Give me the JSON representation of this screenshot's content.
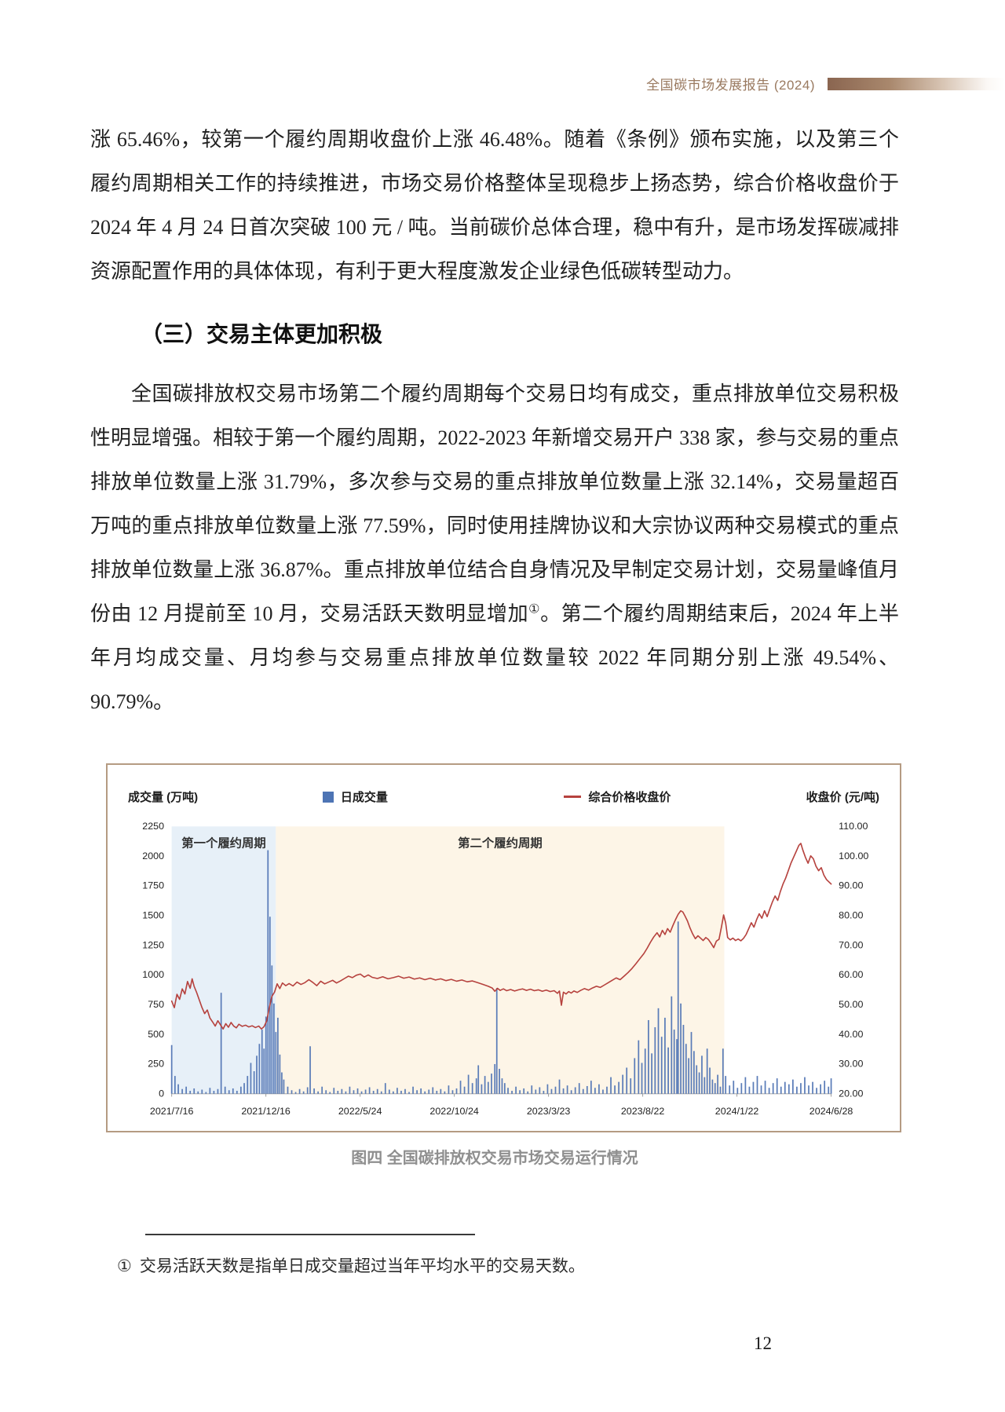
{
  "header": {
    "title": "全国碳市场发展报告 (2024)",
    "accent_color": "#8a6550"
  },
  "paragraphs": {
    "p1": "涨 65.46%，较第一个履约周期收盘价上涨 46.48%。随着《条例》颁布实施，以及第三个履约周期相关工作的持续推进，市场交易价格整体呈现稳步上扬态势，综合价格收盘价于 2024 年 4 月 24 日首次突破 100 元 / 吨。当前碳价总体合理，稳中有升，是市场发挥碳减排资源配置作用的具体体现，有利于更大程度激发企业绿色低碳转型动力。",
    "heading": "（三）交易主体更加积极",
    "p2_part1": "全国碳排放权交易市场第二个履约周期每个交易日均有成交，重点排放单位交易积极性明显增强。相较于第一个履约周期，2022-2023 年新增交易开户 338 家，参与交易的重点排放单位数量上涨 31.79%，多次参与交易的重点排放单位数量上涨 32.14%，交易量超百万吨的重点排放单位数量上涨 77.59%，同时使用挂牌协议和大宗协议两种交易模式的重点排放单位数量上涨 36.87%。重点排放单位结合自身情况及早制定交易计划，交易量峰值月份由 12 月提前至 10 月，交易活跃天数明显增加",
    "p2_sup": "①",
    "p2_part2": "。第二个履约周期结束后，2024 年上半年月均成交量、月均参与交易重点排放单位数量较 2022 年同期分别上涨 49.54%、90.79%。"
  },
  "figure": {
    "caption": "图四 全国碳排放权交易市场交易运行情况"
  },
  "footnote": {
    "marker": "①",
    "text": "交易活跃天数是指单日成交量超过当年平均水平的交易天数。"
  },
  "page_number": "12",
  "chart_data": {
    "type": "bar+line",
    "left_axis": {
      "label": "成交量 (万吨)",
      "min": 0,
      "max": 2250,
      "ticks": [
        0,
        250,
        500,
        750,
        1000,
        1250,
        1500,
        1750,
        2000,
        2250
      ]
    },
    "right_axis": {
      "label": "收盘价 (元/吨)",
      "min": 20,
      "max": 110,
      "ticks": [
        20,
        30,
        40,
        50,
        60,
        70,
        80,
        90,
        100,
        110
      ]
    },
    "x_ticks": [
      "2021/7/16",
      "2021/12/16",
      "2022/5/24",
      "2022/10/24",
      "2023/3/23",
      "2023/8/22",
      "2024/1/22",
      "2024/6/28"
    ],
    "legend": [
      {
        "label": "日成交量",
        "type": "bar",
        "color": "#4d74b4"
      },
      {
        "label": "综合价格收盘价",
        "type": "line",
        "color": "#b6423e"
      }
    ],
    "regions": [
      {
        "label": "第一个履约周期",
        "start": 0,
        "end": 0.158,
        "color": "#e7f0f8"
      },
      {
        "label": "第二个履约周期",
        "start": 0.158,
        "end": 0.838,
        "color": "#fdf5e7"
      }
    ],
    "bar_color": "#5a7cb8",
    "line_color": "#b6423e",
    "bars": [
      [
        0.0,
        410
      ],
      [
        0.005,
        150
      ],
      [
        0.01,
        80
      ],
      [
        0.016,
        40
      ],
      [
        0.022,
        60
      ],
      [
        0.028,
        25
      ],
      [
        0.034,
        45
      ],
      [
        0.04,
        20
      ],
      [
        0.046,
        35
      ],
      [
        0.052,
        15
      ],
      [
        0.058,
        50
      ],
      [
        0.064,
        25
      ],
      [
        0.07,
        40
      ],
      [
        0.075,
        850
      ],
      [
        0.081,
        60
      ],
      [
        0.087,
        30
      ],
      [
        0.093,
        45
      ],
      [
        0.099,
        25
      ],
      [
        0.105,
        60
      ],
      [
        0.11,
        90
      ],
      [
        0.115,
        150
      ],
      [
        0.12,
        260
      ],
      [
        0.125,
        190
      ],
      [
        0.129,
        320
      ],
      [
        0.133,
        420
      ],
      [
        0.137,
        540
      ],
      [
        0.14,
        380
      ],
      [
        0.143,
        650
      ],
      [
        0.146,
        2050
      ],
      [
        0.149,
        1490
      ],
      [
        0.152,
        1080
      ],
      [
        0.155,
        760
      ],
      [
        0.158,
        520
      ],
      [
        0.161,
        640
      ],
      [
        0.164,
        330
      ],
      [
        0.167,
        180
      ],
      [
        0.17,
        120
      ],
      [
        0.176,
        60
      ],
      [
        0.182,
        30
      ],
      [
        0.188,
        15
      ],
      [
        0.194,
        40
      ],
      [
        0.2,
        20
      ],
      [
        0.206,
        55
      ],
      [
        0.21,
        400
      ],
      [
        0.216,
        45
      ],
      [
        0.222,
        20
      ],
      [
        0.228,
        60
      ],
      [
        0.234,
        30
      ],
      [
        0.24,
        15
      ],
      [
        0.246,
        50
      ],
      [
        0.252,
        25
      ],
      [
        0.258,
        40
      ],
      [
        0.264,
        20
      ],
      [
        0.27,
        60
      ],
      [
        0.276,
        30
      ],
      [
        0.282,
        45
      ],
      [
        0.288,
        20
      ],
      [
        0.294,
        35
      ],
      [
        0.3,
        55
      ],
      [
        0.306,
        25
      ],
      [
        0.312,
        40
      ],
      [
        0.318,
        20
      ],
      [
        0.324,
        90
      ],
      [
        0.33,
        35
      ],
      [
        0.336,
        20
      ],
      [
        0.342,
        50
      ],
      [
        0.348,
        25
      ],
      [
        0.354,
        40
      ],
      [
        0.36,
        15
      ],
      [
        0.366,
        60
      ],
      [
        0.372,
        30
      ],
      [
        0.378,
        45
      ],
      [
        0.384,
        20
      ],
      [
        0.39,
        35
      ],
      [
        0.396,
        55
      ],
      [
        0.402,
        25
      ],
      [
        0.408,
        40
      ],
      [
        0.414,
        20
      ],
      [
        0.42,
        70
      ],
      [
        0.426,
        30
      ],
      [
        0.432,
        45
      ],
      [
        0.438,
        110
      ],
      [
        0.444,
        60
      ],
      [
        0.45,
        160
      ],
      [
        0.456,
        90
      ],
      [
        0.462,
        130
      ],
      [
        0.465,
        240
      ],
      [
        0.47,
        80
      ],
      [
        0.475,
        150
      ],
      [
        0.48,
        100
      ],
      [
        0.485,
        170
      ],
      [
        0.49,
        250
      ],
      [
        0.493,
        890
      ],
      [
        0.497,
        210
      ],
      [
        0.501,
        130
      ],
      [
        0.505,
        90
      ],
      [
        0.51,
        50
      ],
      [
        0.516,
        25
      ],
      [
        0.522,
        60
      ],
      [
        0.528,
        30
      ],
      [
        0.534,
        45
      ],
      [
        0.54,
        20
      ],
      [
        0.546,
        70
      ],
      [
        0.552,
        35
      ],
      [
        0.558,
        55
      ],
      [
        0.564,
        25
      ],
      [
        0.57,
        80
      ],
      [
        0.576,
        40
      ],
      [
        0.582,
        60
      ],
      [
        0.588,
        120
      ],
      [
        0.594,
        45
      ],
      [
        0.6,
        70
      ],
      [
        0.606,
        30
      ],
      [
        0.612,
        55
      ],
      [
        0.618,
        90
      ],
      [
        0.624,
        40
      ],
      [
        0.63,
        65
      ],
      [
        0.636,
        110
      ],
      [
        0.642,
        50
      ],
      [
        0.648,
        80
      ],
      [
        0.654,
        35
      ],
      [
        0.66,
        60
      ],
      [
        0.666,
        140
      ],
      [
        0.672,
        70
      ],
      [
        0.678,
        100
      ],
      [
        0.684,
        160
      ],
      [
        0.69,
        220
      ],
      [
        0.696,
        130
      ],
      [
        0.702,
        300
      ],
      [
        0.708,
        450
      ],
      [
        0.713,
        260
      ],
      [
        0.718,
        380
      ],
      [
        0.723,
        620
      ],
      [
        0.728,
        340
      ],
      [
        0.733,
        560
      ],
      [
        0.738,
        720
      ],
      [
        0.743,
        480
      ],
      [
        0.748,
        640
      ],
      [
        0.753,
        390
      ],
      [
        0.758,
        820
      ],
      [
        0.762,
        540
      ],
      [
        0.766,
        460
      ],
      [
        0.768,
        1450
      ],
      [
        0.772,
        760
      ],
      [
        0.776,
        580
      ],
      [
        0.78,
        420
      ],
      [
        0.784,
        300
      ],
      [
        0.788,
        520
      ],
      [
        0.792,
        360
      ],
      [
        0.796,
        240
      ],
      [
        0.8,
        180
      ],
      [
        0.804,
        320
      ],
      [
        0.808,
        140
      ],
      [
        0.812,
        380
      ],
      [
        0.816,
        220
      ],
      [
        0.82,
        120
      ],
      [
        0.824,
        90
      ],
      [
        0.828,
        160
      ],
      [
        0.832,
        60
      ],
      [
        0.836,
        380
      ],
      [
        0.84,
        150
      ],
      [
        0.846,
        70
      ],
      [
        0.852,
        110
      ],
      [
        0.858,
        50
      ],
      [
        0.864,
        90
      ],
      [
        0.87,
        140
      ],
      [
        0.876,
        60
      ],
      [
        0.882,
        100
      ],
      [
        0.888,
        150
      ],
      [
        0.894,
        70
      ],
      [
        0.9,
        110
      ],
      [
        0.906,
        50
      ],
      [
        0.912,
        90
      ],
      [
        0.918,
        130
      ],
      [
        0.924,
        60
      ],
      [
        0.93,
        100
      ],
      [
        0.936,
        80
      ],
      [
        0.942,
        120
      ],
      [
        0.948,
        60
      ],
      [
        0.954,
        90
      ],
      [
        0.96,
        140
      ],
      [
        0.966,
        70
      ],
      [
        0.972,
        100
      ],
      [
        0.978,
        50
      ],
      [
        0.984,
        80
      ],
      [
        0.99,
        110
      ],
      [
        0.996,
        60
      ],
      [
        1.0,
        130
      ]
    ],
    "line": [
      [
        0.0,
        51.2
      ],
      [
        0.004,
        49.0
      ],
      [
        0.008,
        53.5
      ],
      [
        0.012,
        51.8
      ],
      [
        0.016,
        55.3
      ],
      [
        0.02,
        53.6
      ],
      [
        0.024,
        57.8
      ],
      [
        0.028,
        55.5
      ],
      [
        0.031,
        58.7
      ],
      [
        0.034,
        56.2
      ],
      [
        0.038,
        54.0
      ],
      [
        0.042,
        51.5
      ],
      [
        0.046,
        49.0
      ],
      [
        0.05,
        47.0
      ],
      [
        0.054,
        48.2
      ],
      [
        0.058,
        45.5
      ],
      [
        0.062,
        44.2
      ],
      [
        0.066,
        42.8
      ],
      [
        0.07,
        44.6
      ],
      [
        0.074,
        43.2
      ],
      [
        0.078,
        41.8
      ],
      [
        0.082,
        43.6
      ],
      [
        0.086,
        42.4
      ],
      [
        0.09,
        44.0
      ],
      [
        0.094,
        42.8
      ],
      [
        0.098,
        42.2
      ],
      [
        0.102,
        43.4
      ],
      [
        0.107,
        42.7
      ],
      [
        0.112,
        43.1
      ],
      [
        0.117,
        42.5
      ],
      [
        0.122,
        42.9
      ],
      [
        0.127,
        42.3
      ],
      [
        0.132,
        42.8
      ],
      [
        0.136,
        41.8
      ],
      [
        0.14,
        42.6
      ],
      [
        0.144,
        44.5
      ],
      [
        0.148,
        49.0
      ],
      [
        0.152,
        52.8
      ],
      [
        0.156,
        54.2
      ],
      [
        0.16,
        57.0
      ],
      [
        0.164,
        55.4
      ],
      [
        0.168,
        57.3
      ],
      [
        0.173,
        56.4
      ],
      [
        0.178,
        57.1
      ],
      [
        0.184,
        56.3
      ],
      [
        0.19,
        57.6
      ],
      [
        0.196,
        56.8
      ],
      [
        0.202,
        57.4
      ],
      [
        0.208,
        58.4
      ],
      [
        0.214,
        57.5
      ],
      [
        0.22,
        56.4
      ],
      [
        0.226,
        57.9
      ],
      [
        0.232,
        57.0
      ],
      [
        0.238,
        57.6
      ],
      [
        0.244,
        58.2
      ],
      [
        0.25,
        57.3
      ],
      [
        0.256,
        58.0
      ],
      [
        0.262,
        58.8
      ],
      [
        0.268,
        59.6
      ],
      [
        0.274,
        59.1
      ],
      [
        0.28,
        59.9
      ],
      [
        0.286,
        60.3
      ],
      [
        0.292,
        59.3
      ],
      [
        0.298,
        60.0
      ],
      [
        0.304,
        59.2
      ],
      [
        0.312,
        58.8
      ],
      [
        0.32,
        59.4
      ],
      [
        0.328,
        58.7
      ],
      [
        0.336,
        59.1
      ],
      [
        0.344,
        59.6
      ],
      [
        0.352,
        58.9
      ],
      [
        0.36,
        59.3
      ],
      [
        0.368,
        58.6
      ],
      [
        0.376,
        59.0
      ],
      [
        0.384,
        58.4
      ],
      [
        0.392,
        58.9
      ],
      [
        0.4,
        58.3
      ],
      [
        0.408,
        58.7
      ],
      [
        0.416,
        58.1
      ],
      [
        0.424,
        58.5
      ],
      [
        0.432,
        57.9
      ],
      [
        0.44,
        58.3
      ],
      [
        0.448,
        57.7
      ],
      [
        0.456,
        58.0
      ],
      [
        0.464,
        57.4
      ],
      [
        0.472,
        56.8
      ],
      [
        0.48,
        56.2
      ],
      [
        0.486,
        55.6
      ],
      [
        0.49,
        54.5
      ],
      [
        0.494,
        55.5
      ],
      [
        0.498,
        54.8
      ],
      [
        0.503,
        55.3
      ],
      [
        0.508,
        54.7
      ],
      [
        0.514,
        55.1
      ],
      [
        0.52,
        54.6
      ],
      [
        0.526,
        55.0
      ],
      [
        0.532,
        55.3
      ],
      [
        0.538,
        54.8
      ],
      [
        0.544,
        55.2
      ],
      [
        0.55,
        54.7
      ],
      [
        0.556,
        55.0
      ],
      [
        0.562,
        54.5
      ],
      [
        0.568,
        54.9
      ],
      [
        0.574,
        54.4
      ],
      [
        0.58,
        54.7
      ],
      [
        0.585,
        53.8
      ],
      [
        0.588,
        54.6
      ],
      [
        0.591,
        49.8
      ],
      [
        0.594,
        54.2
      ],
      [
        0.598,
        53.6
      ],
      [
        0.602,
        54.4
      ],
      [
        0.606,
        53.9
      ],
      [
        0.61,
        54.6
      ],
      [
        0.615,
        54.1
      ],
      [
        0.62,
        54.8
      ],
      [
        0.626,
        55.4
      ],
      [
        0.632,
        54.9
      ],
      [
        0.638,
        55.6
      ],
      [
        0.644,
        56.2
      ],
      [
        0.65,
        55.8
      ],
      [
        0.656,
        56.6
      ],
      [
        0.662,
        57.4
      ],
      [
        0.668,
        58.2
      ],
      [
        0.674,
        59.0
      ],
      [
        0.68,
        58.4
      ],
      [
        0.686,
        59.6
      ],
      [
        0.692,
        60.8
      ],
      [
        0.698,
        62.2
      ],
      [
        0.704,
        63.8
      ],
      [
        0.71,
        65.5
      ],
      [
        0.716,
        67.2
      ],
      [
        0.721,
        69.0
      ],
      [
        0.726,
        71.0
      ],
      [
        0.731,
        72.8
      ],
      [
        0.736,
        74.2
      ],
      [
        0.74,
        72.8
      ],
      [
        0.744,
        75.0
      ],
      [
        0.748,
        73.6
      ],
      [
        0.752,
        75.6
      ],
      [
        0.756,
        74.4
      ],
      [
        0.76,
        76.6
      ],
      [
        0.764,
        78.6
      ],
      [
        0.768,
        80.4
      ],
      [
        0.772,
        81.6
      ],
      [
        0.775,
        81.2
      ],
      [
        0.778,
        80.0
      ],
      [
        0.782,
        78.2
      ],
      [
        0.786,
        75.8
      ],
      [
        0.79,
        73.8
      ],
      [
        0.794,
        72.2
      ],
      [
        0.798,
        73.2
      ],
      [
        0.802,
        72.4
      ],
      [
        0.806,
        71.6
      ],
      [
        0.81,
        72.6
      ],
      [
        0.814,
        71.9
      ],
      [
        0.818,
        70.6
      ],
      [
        0.822,
        69.2
      ],
      [
        0.826,
        71.4
      ],
      [
        0.83,
        72.0
      ],
      [
        0.834,
        76.5
      ],
      [
        0.837,
        80.2
      ],
      [
        0.84,
        77.5
      ],
      [
        0.843,
        72.6
      ],
      [
        0.847,
        71.8
      ],
      [
        0.851,
        72.4
      ],
      [
        0.855,
        71.6
      ],
      [
        0.859,
        72.1
      ],
      [
        0.863,
        71.5
      ],
      [
        0.867,
        72.3
      ],
      [
        0.871,
        73.6
      ],
      [
        0.875,
        75.6
      ],
      [
        0.879,
        77.6
      ],
      [
        0.883,
        76.1
      ],
      [
        0.887,
        78.6
      ],
      [
        0.891,
        80.6
      ],
      [
        0.895,
        79.1
      ],
      [
        0.899,
        81.6
      ],
      [
        0.903,
        79.6
      ],
      [
        0.907,
        82.2
      ],
      [
        0.911,
        84.6
      ],
      [
        0.915,
        86.6
      ],
      [
        0.919,
        85.1
      ],
      [
        0.923,
        88.1
      ],
      [
        0.927,
        90.6
      ],
      [
        0.931,
        92.6
      ],
      [
        0.935,
        95.1
      ],
      [
        0.939,
        97.6
      ],
      [
        0.943,
        99.6
      ],
      [
        0.947,
        101.6
      ],
      [
        0.951,
        103.6
      ],
      [
        0.954,
        104.3
      ],
      [
        0.957,
        102.1
      ],
      [
        0.961,
        99.6
      ],
      [
        0.965,
        97.6
      ],
      [
        0.969,
        100.1
      ],
      [
        0.973,
        99.1
      ],
      [
        0.977,
        96.6
      ],
      [
        0.981,
        95.1
      ],
      [
        0.985,
        96.1
      ],
      [
        0.989,
        93.6
      ],
      [
        0.993,
        92.1
      ],
      [
        1.0,
        90.6
      ]
    ]
  }
}
